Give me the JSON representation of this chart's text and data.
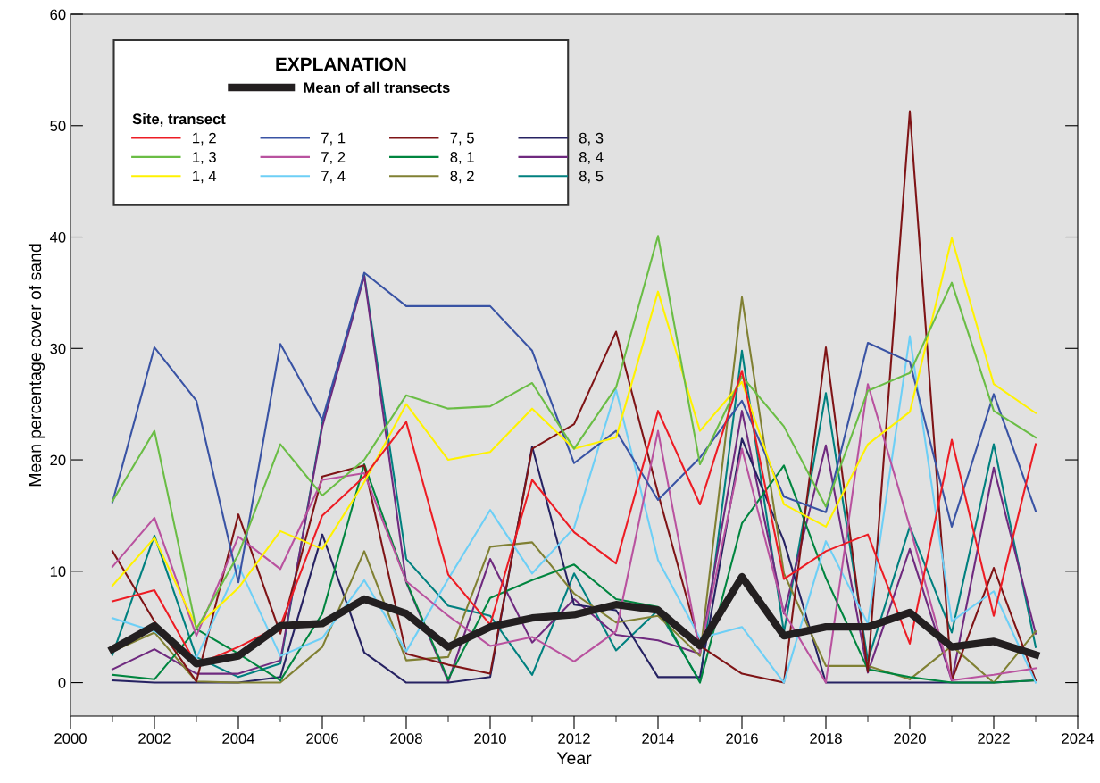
{
  "chart_data": {
    "type": "line",
    "xlabel": "Year",
    "ylabel": "Mean percentage cover of sand",
    "legend_title": "EXPLANATION",
    "annotations": [
      "Site, transect"
    ],
    "x": [
      2001,
      2002,
      2003,
      2004,
      2005,
      2006,
      2007,
      2008,
      2009,
      2010,
      2011,
      2012,
      2013,
      2014,
      2015,
      2016,
      2017,
      2018,
      2019,
      2020,
      2021,
      2022,
      2023
    ],
    "xlim": [
      2000,
      2024
    ],
    "xticks": [
      2000,
      2002,
      2004,
      2006,
      2008,
      2010,
      2012,
      2014,
      2016,
      2018,
      2020,
      2022,
      2024
    ],
    "ylim": [
      -3,
      60
    ],
    "yticks": [
      0,
      10,
      20,
      30,
      40,
      50,
      60
    ],
    "grid": false,
    "legend": "top left",
    "marker": "none",
    "line_style": "solid",
    "series": [
      {
        "name": "Mean of all transects",
        "color": "#231f20",
        "values": [
          3.0,
          5.1,
          1.7,
          2.4,
          5.1,
          5.3,
          7.5,
          6.2,
          3.2,
          5.0,
          5.8,
          6.1,
          7.0,
          6.5,
          3.3,
          9.5,
          4.2,
          5.0,
          5.0,
          6.3,
          3.2,
          3.7,
          2.5
        ]
      },
      {
        "name": "1, 2",
        "color": "#ed1c24",
        "values": [
          7.3,
          8.3,
          1.6,
          3.2,
          5.1,
          15.0,
          18.5,
          23.4,
          9.7,
          5.2,
          18.2,
          13.5,
          10.7,
          24.4,
          16.0,
          28.0,
          9.3,
          11.8,
          13.3,
          3.5,
          21.8,
          6.0,
          21.4
        ]
      },
      {
        "name": "1, 3",
        "color": "#6abd45",
        "values": [
          16.3,
          22.6,
          4.8,
          11.5,
          21.4,
          16.8,
          20.0,
          25.8,
          24.6,
          24.8,
          26.9,
          21.0,
          26.5,
          40.1,
          19.6,
          27.5,
          23.0,
          15.8,
          26.2,
          27.8,
          35.9,
          24.4,
          22.0
        ]
      },
      {
        "name": "1, 4",
        "color": "#fff200",
        "values": [
          8.7,
          13.0,
          5.0,
          8.5,
          13.6,
          12.0,
          18.0,
          25.0,
          20.0,
          20.7,
          24.6,
          21.0,
          22.0,
          35.1,
          22.6,
          27.0,
          16.0,
          14.0,
          21.4,
          24.3,
          39.9,
          26.8,
          24.2
        ]
      },
      {
        "name": "7, 1",
        "color": "#3953a4",
        "values": [
          16.2,
          30.1,
          25.3,
          9.0,
          30.4,
          23.6,
          36.8,
          33.8,
          33.8,
          33.8,
          29.8,
          19.7,
          22.6,
          16.4,
          20.2,
          25.3,
          16.7,
          15.3,
          30.5,
          28.8,
          14.0,
          25.9,
          15.4
        ]
      },
      {
        "name": "7, 2",
        "color": "#b9529f",
        "values": [
          10.4,
          14.8,
          4.2,
          13.1,
          10.2,
          18.2,
          18.8,
          9.1,
          6.0,
          3.3,
          4.1,
          1.9,
          4.6,
          22.6,
          2.7,
          21.0,
          6.3,
          0.0,
          26.8,
          14.0,
          0.2,
          0.7,
          1.3
        ]
      },
      {
        "name": "7, 4",
        "color": "#6dcff6",
        "values": [
          5.8,
          4.6,
          2.2,
          10.5,
          2.4,
          4.0,
          9.2,
          2.8,
          9.3,
          15.5,
          9.8,
          13.9,
          26.3,
          11.0,
          4.0,
          5.0,
          0.0,
          12.7,
          5.3,
          31.1,
          5.5,
          8.2,
          0.0
        ]
      },
      {
        "name": "7, 5",
        "color": "#7f1416",
        "values": [
          11.8,
          5.5,
          0.1,
          15.1,
          4.4,
          18.5,
          19.5,
          2.6,
          1.6,
          0.8,
          21.0,
          23.2,
          31.5,
          17.0,
          3.3,
          0.8,
          0.0,
          30.1,
          1.0,
          51.3,
          0.2,
          10.3,
          0.2
        ]
      },
      {
        "name": "8, 1",
        "color": "#00853f",
        "values": [
          0.7,
          0.3,
          4.8,
          2.6,
          0.2,
          6.2,
          19.6,
          9.1,
          0.3,
          7.6,
          9.2,
          10.6,
          7.5,
          6.8,
          0.0,
          14.3,
          19.5,
          9.4,
          1.2,
          0.5,
          0.0,
          0.0,
          0.2
        ]
      },
      {
        "name": "8, 2",
        "color": "#808033",
        "values": [
          2.8,
          4.5,
          0.1,
          0.0,
          0.0,
          3.2,
          11.8,
          2.0,
          2.3,
          12.2,
          12.6,
          8.0,
          5.4,
          6.0,
          2.4,
          34.6,
          9.8,
          1.5,
          1.5,
          0.3,
          3.3,
          0.0,
          4.6
        ]
      },
      {
        "name": "8, 3",
        "color": "#262262",
        "values": [
          0.2,
          0.0,
          0.0,
          0.0,
          0.5,
          13.3,
          2.7,
          0.0,
          0.0,
          0.5,
          21.2,
          7.0,
          6.5,
          0.5,
          0.5,
          21.9,
          12.7,
          0.0,
          0.0,
          0.0,
          0.0,
          0.0,
          0.2
        ]
      },
      {
        "name": "8, 4",
        "color": "#6f2a7f",
        "values": [
          1.2,
          3.0,
          0.8,
          0.8,
          2.0,
          23.0,
          36.5,
          9.0,
          0.1,
          11.1,
          3.6,
          7.5,
          4.3,
          3.8,
          2.6,
          24.4,
          6.2,
          21.3,
          0.9,
          12.0,
          0.2,
          19.3,
          4.4
        ]
      },
      {
        "name": "8, 5",
        "color": "#00807f",
        "values": [
          2.5,
          13.2,
          2.3,
          0.5,
          1.7,
          23.3,
          36.6,
          11.1,
          6.9,
          6.0,
          0.7,
          9.8,
          2.9,
          6.5,
          0.1,
          29.8,
          4.5,
          26.0,
          2.0,
          14.0,
          4.5,
          21.4,
          3.2
        ]
      }
    ]
  }
}
